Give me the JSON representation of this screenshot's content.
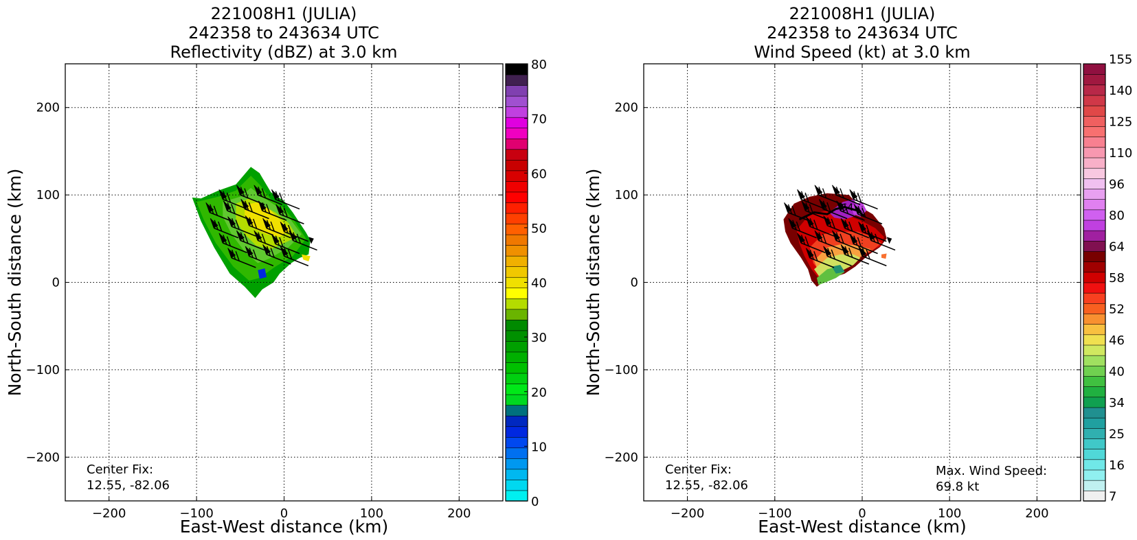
{
  "panels": [
    {
      "title_lines": [
        "221008H1 (JULIA)",
        "242358 to 243634 UTC",
        "Reflectivity (dBZ) at 3.0 km"
      ],
      "center_fix_label": "Center Fix:",
      "center_fix_value": "12.55, -82.06"
    },
    {
      "title_lines": [
        "221008H1 (JULIA)",
        "242358 to 243634 UTC",
        "Wind Speed (kt) at 3.0 km"
      ],
      "center_fix_label": "Center Fix:",
      "center_fix_value": "12.55, -82.06",
      "max_wind_label": "Max. Wind Speed:",
      "max_wind_value": "69.8 kt",
      "contour_label": "64"
    }
  ],
  "chart_data": [
    {
      "type": "heatmap",
      "title": "221008H1 (JULIA) 242358 to 243634 UTC Reflectivity (dBZ) at 3.0 km",
      "xlabel": "East-West distance (km)",
      "ylabel": "North-South distance (km)",
      "xlim": [
        -250,
        250
      ],
      "ylim": [
        -250,
        250
      ],
      "xticks": [
        -200,
        -100,
        0,
        100,
        200
      ],
      "yticks": [
        -200,
        -100,
        0,
        100,
        200
      ],
      "xtick_labels": [
        "−200",
        "−100",
        "0",
        "100",
        "200"
      ],
      "ytick_labels": [
        "−200",
        "−100",
        "0",
        "100",
        "200"
      ],
      "grid": "dotted",
      "colorbar": {
        "ticks": [
          0,
          10,
          20,
          30,
          40,
          50,
          60,
          70,
          80
        ],
        "tick_labels": [
          "0",
          "10",
          "20",
          "30",
          "40",
          "50",
          "60",
          "70",
          "80"
        ],
        "colors": [
          "#00f0f0",
          "#00d8f0",
          "#00b8f0",
          "#0098f0",
          "#0070f0",
          "#0048f0",
          "#0028e0",
          "#0028c0",
          "#00707e",
          "#00d820",
          "#00e818",
          "#00d010",
          "#00c000",
          "#00b000",
          "#00a000",
          "#009000",
          "#008a00",
          "#6ab400",
          "#b4dc00",
          "#ffff00",
          "#f0e000",
          "#f0c800",
          "#f0b000",
          "#f09000",
          "#f07800",
          "#ff6000",
          "#ff4000",
          "#ff2000",
          "#ff0000",
          "#f00000",
          "#d80000",
          "#c80000",
          "#c80010",
          "#e00070",
          "#f000c0",
          "#e000e0",
          "#c040e0",
          "#a050d0",
          "#8040b0",
          "#402050",
          "#000000"
        ],
        "range": [
          0,
          80
        ]
      },
      "field": {
        "region": "storm echo region roughly x -105 to 30 km, y -15 to 135 km",
        "colors": [
          "#00a000",
          "#20b800",
          "#50c800",
          "#b0d800",
          "#f0e000",
          "#0028e0"
        ]
      },
      "wind_barbs": "present"
    },
    {
      "type": "heatmap",
      "title": "221008H1 (JULIA) 242358 to 243634 UTC Wind Speed (kt) at 3.0 km",
      "xlabel": "East-West distance (km)",
      "ylabel": "North-South distance (km)",
      "xlim": [
        -250,
        250
      ],
      "ylim": [
        -250,
        250
      ],
      "xticks": [
        -200,
        -100,
        0,
        100,
        200
      ],
      "yticks": [
        -200,
        -100,
        0,
        100,
        200
      ],
      "xtick_labels": [
        "−200",
        "−100",
        "0",
        "100",
        "200"
      ],
      "ytick_labels": [
        "−200",
        "−100",
        "0",
        "100",
        "200"
      ],
      "grid": "dotted",
      "colorbar": {
        "tick_labels": [
          "7",
          "16",
          "25",
          "34",
          "40",
          "46",
          "52",
          "58",
          "64",
          "80",
          "96",
          "110",
          "125",
          "140",
          "155"
        ],
        "colors": [
          "#f0f0f0",
          "#c0f0f0",
          "#90f0f0",
          "#70e8e8",
          "#50d8d8",
          "#40c8c8",
          "#30b0b0",
          "#20a0a0",
          "#209090",
          "#10a050",
          "#20b040",
          "#40c040",
          "#70d050",
          "#a0e060",
          "#d0e860",
          "#f0e050",
          "#f8c040",
          "#f89030",
          "#f86020",
          "#f84020",
          "#f01010",
          "#d00000",
          "#a00000",
          "#780000",
          "#801050",
          "#a020a0",
          "#c040e0",
          "#d060f0",
          "#e080f0",
          "#e8a0f0",
          "#f0c0f0",
          "#f8c8e0",
          "#f8b0c8",
          "#f898b0",
          "#f88090",
          "#f87070",
          "#f06060",
          "#e04848",
          "#d03848",
          "#b82848",
          "#a01840",
          "#901040"
        ],
        "range": [
          7,
          160
        ]
      },
      "field": {
        "region": "storm wind region roughly x -90 to 30 km, y -5 to 105 km",
        "colors": [
          "#780000",
          "#c80000",
          "#f03020",
          "#f8a040",
          "#d0e060",
          "#60c040",
          "#209070",
          "#a020c0"
        ]
      },
      "contour": "64",
      "wind_barbs": "present"
    }
  ]
}
